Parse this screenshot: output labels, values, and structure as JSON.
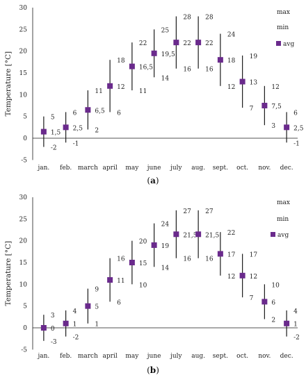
{
  "colors": {
    "avg": "#6a2a8c",
    "range": "#1a1a1a",
    "axis": "#1a1a1a"
  },
  "chart_data": [
    {
      "panel": "a",
      "panel_label": {
        "open": "(",
        "letter": "a",
        "close": ")"
      },
      "type": "range_with_avg",
      "ylabel": "Temperature [°C]",
      "ylim": [
        -5,
        30
      ],
      "yticks": [
        "-5",
        "0",
        "5",
        "10",
        "15",
        "20",
        "25",
        "30"
      ],
      "categories": [
        "jan.",
        "feb.",
        "march",
        "april",
        "may",
        "june",
        "july",
        "aug.",
        "sept.",
        "oct.",
        "nov.",
        "dec."
      ],
      "legend": [
        "max",
        "min",
        "avg"
      ],
      "max": [
        5,
        6,
        11,
        18,
        22,
        25,
        28,
        28,
        24,
        19,
        12,
        6
      ],
      "min": [
        -2,
        -1,
        2,
        6,
        11,
        14,
        16,
        16,
        12,
        7,
        3,
        -1
      ],
      "avg": [
        1.5,
        2.5,
        6.5,
        12,
        16.5,
        19.5,
        22,
        22,
        18,
        13,
        7.5,
        2.5
      ],
      "max_labels": [
        "5",
        "6",
        "11",
        "18",
        "22",
        "25",
        "28",
        "28",
        "24",
        "19",
        "12",
        "6"
      ],
      "min_labels": [
        "-2",
        "-1",
        "2",
        "6",
        "11",
        "14",
        "16",
        "16",
        "12",
        "7",
        "3",
        "-1"
      ],
      "avg_labels": [
        "1,5",
        "2,5",
        "6,5",
        "12",
        "16,5",
        "19,5",
        "22",
        "22",
        "18",
        "13",
        "7,5",
        "2,5"
      ]
    },
    {
      "panel": "b",
      "panel_label": {
        "open": "(",
        "letter": "b",
        "close": ")"
      },
      "type": "range_with_avg",
      "ylabel": "Temperature [°C]",
      "ylim": [
        -5,
        30
      ],
      "yticks": [
        "-5",
        "0",
        "5",
        "10",
        "15",
        "20",
        "25",
        "30"
      ],
      "categories": [
        "jan.",
        "feb.",
        "march",
        "april",
        "may",
        "june",
        "july",
        "aug.",
        "sept.",
        "oct.",
        "nov.",
        "dec."
      ],
      "legend": [
        "max",
        "min",
        "avg"
      ],
      "max": [
        3,
        4,
        9,
        16,
        20,
        24,
        27,
        27,
        22,
        17,
        10,
        4
      ],
      "min": [
        -3,
        -2,
        1,
        6,
        10,
        14,
        16,
        16,
        12,
        7,
        2,
        -2
      ],
      "avg": [
        0,
        1,
        5,
        11,
        15,
        19,
        21.5,
        21.5,
        17,
        12,
        6,
        1
      ],
      "max_labels": [
        "3",
        "4",
        "9",
        "16",
        "20",
        "24",
        "27",
        "27",
        "22",
        "17",
        "10",
        "4"
      ],
      "min_labels": [
        "-3",
        "-2",
        "1",
        "6",
        "10",
        "14",
        "16",
        "16",
        "12",
        "7",
        "2",
        "-2"
      ],
      "avg_labels": [
        "0",
        "1",
        "5",
        "11",
        "15",
        "19",
        "21,5",
        "21,5",
        "17",
        "12",
        "6",
        "1"
      ]
    }
  ]
}
